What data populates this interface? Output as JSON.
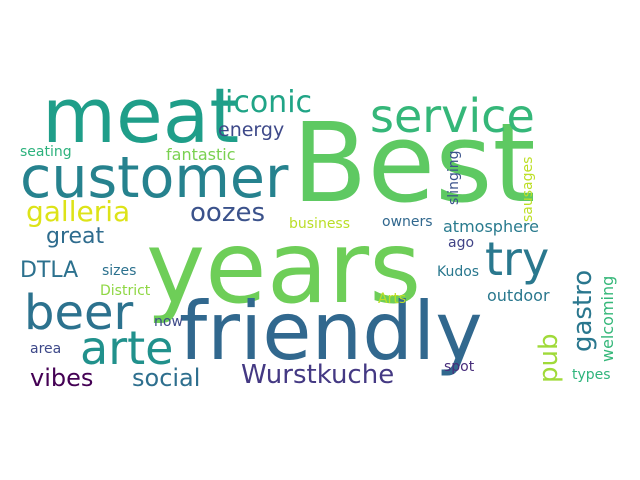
{
  "words": {
    "best": {
      "text": "Best",
      "color": "#5ec962"
    },
    "years": {
      "text": "years",
      "color": "#6ece58"
    },
    "friendly": {
      "text": "friendly",
      "color": "#31688e"
    },
    "meat": {
      "text": "meat",
      "color": "#1f9e89"
    },
    "customer": {
      "text": "customer",
      "color": "#26828e"
    },
    "service": {
      "text": "service",
      "color": "#35b779"
    },
    "beer": {
      "text": "beer",
      "color": "#2c728e"
    },
    "arte": {
      "text": "arte",
      "color": "#21918c"
    },
    "try": {
      "text": "try",
      "color": "#2a788e"
    },
    "iconic": {
      "text": "iconic",
      "color": "#20a486"
    },
    "galleria": {
      "text": "galleria",
      "color": "#dde318"
    },
    "oozes": {
      "text": "oozes",
      "color": "#3b528b"
    },
    "great": {
      "text": "great",
      "color": "#2f6c8e"
    },
    "energy": {
      "text": "energy",
      "color": "#3e4989"
    },
    "fantastic": {
      "text": "fantastic",
      "color": "#7ad151"
    },
    "wurstkuche": {
      "text": "Wurstkuche",
      "color": "#443983"
    },
    "vibes": {
      "text": "vibes",
      "color": "#440154"
    },
    "social": {
      "text": "social",
      "color": "#2e6f8e"
    },
    "dtla": {
      "text": "DTLA",
      "color": "#2c718e"
    },
    "gastro": {
      "text": "gastro",
      "color": "#2a778e"
    },
    "pub": {
      "text": "pub",
      "color": "#a0da39"
    },
    "atmosphere": {
      "text": "atmosphere",
      "color": "#297b8e"
    },
    "outdoor": {
      "text": "outdoor",
      "color": "#2a788e"
    },
    "welcoming": {
      "text": "welcoming",
      "color": "#35b779"
    },
    "sizes": {
      "text": "sizes",
      "color": "#2c718e"
    },
    "district": {
      "text": "District",
      "color": "#8fd744"
    },
    "business": {
      "text": "business",
      "color": "#bade28"
    },
    "owners": {
      "text": "owners",
      "color": "#31688e"
    },
    "slinging": {
      "text": "slinging",
      "color": "#3b528b"
    },
    "sausages": {
      "text": "sausages",
      "color": "#bddf26"
    },
    "ago": {
      "text": "ago",
      "color": "#414487"
    },
    "kudos": {
      "text": "Kudos",
      "color": "#2a788e"
    },
    "arts": {
      "text": "Arts",
      "color": "#bddf26"
    },
    "now": {
      "text": "now",
      "color": "#3e4a89"
    },
    "area": {
      "text": "area",
      "color": "#3e4989"
    },
    "spot": {
      "text": "spot",
      "color": "#472d7b"
    },
    "types": {
      "text": "types",
      "color": "#2fb47c"
    },
    "seating": {
      "text": "seating",
      "color": "#2db27d"
    }
  }
}
